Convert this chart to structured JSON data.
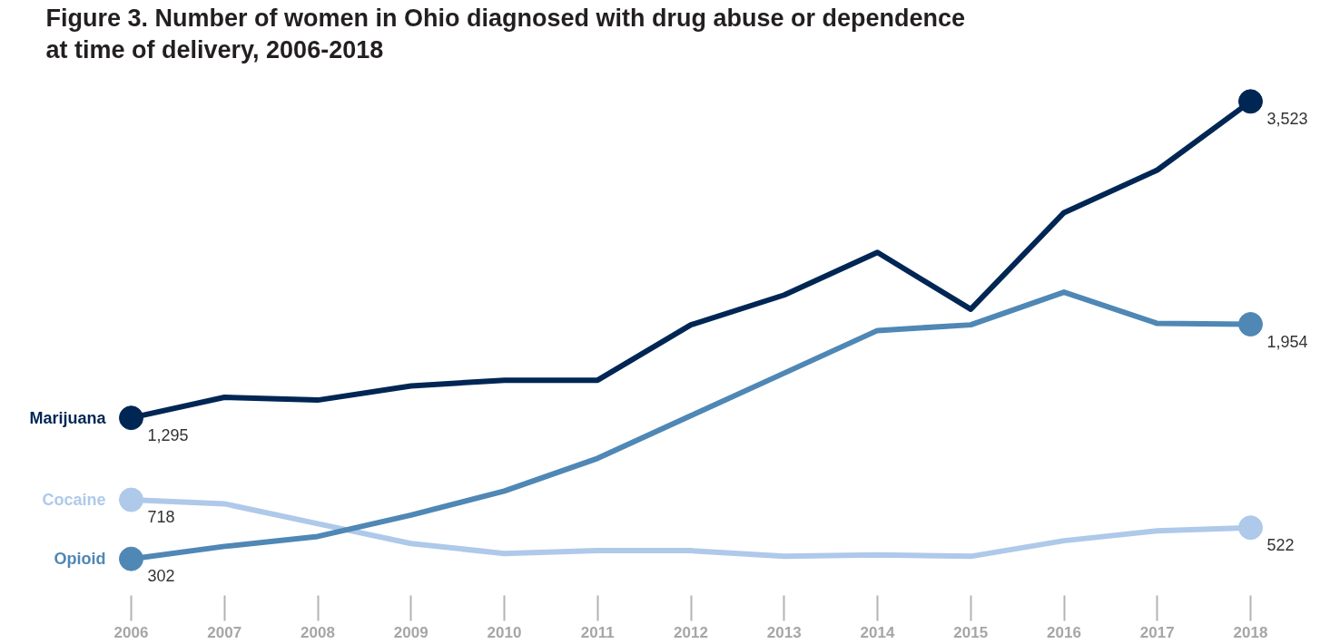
{
  "chart_data": {
    "type": "line",
    "title": "Figure 3. Number of women in Ohio diagnosed with drug abuse or dependence at time of delivery, 2006-2018",
    "x": [
      2006,
      2007,
      2008,
      2009,
      2010,
      2011,
      2012,
      2013,
      2014,
      2015,
      2016,
      2017,
      2018
    ],
    "xlim": [
      2006,
      2018
    ],
    "xticks": [
      2006,
      2007,
      2008,
      2009,
      2010,
      2011,
      2012,
      2013,
      2014,
      2015,
      2016,
      2017,
      2018
    ],
    "tick_labels": "x",
    "grid": false,
    "series": [
      {
        "name": "Marijuana",
        "color": "#002654",
        "values": [
          1295,
          1440,
          1420,
          1520,
          1560,
          1560,
          1950,
          2160,
          2460,
          2060,
          2740,
          3040,
          3523
        ]
      },
      {
        "name": "Cocaine",
        "color": "#aec9e9",
        "values": [
          718,
          690,
          550,
          410,
          340,
          360,
          360,
          320,
          330,
          320,
          430,
          500,
          522
        ]
      },
      {
        "name": "Opioid",
        "color": "#4f87b5",
        "values": [
          302,
          390,
          460,
          610,
          780,
          1010,
          1310,
          1610,
          1910,
          1950,
          2180,
          1960,
          1954
        ]
      },
      {
        "type": "scatter",
        "marker": "circle",
        "color": "#002654",
        "values": [
          1295,
          null,
          null,
          null,
          null,
          null,
          null,
          null,
          null,
          null,
          null,
          null,
          3523
        ],
        "value_labels": [
          "1,295",
          null,
          null,
          null,
          null,
          null,
          null,
          null,
          null,
          null,
          null,
          null,
          "3,523"
        ]
      },
      {
        "type": "scatter",
        "marker": "circle",
        "color": "#aec9e9",
        "values": [
          718,
          null,
          null,
          null,
          null,
          null,
          null,
          null,
          null,
          null,
          null,
          null,
          522
        ],
        "value_labels": [
          "718",
          null,
          null,
          null,
          null,
          null,
          null,
          null,
          null,
          null,
          null,
          null,
          "522"
        ]
      },
      {
        "type": "scatter",
        "marker": "circle",
        "color": "#4f87b5",
        "values": [
          302,
          null,
          null,
          null,
          null,
          null,
          null,
          null,
          null,
          null,
          null,
          null,
          1954
        ],
        "value_labels": [
          "302",
          null,
          null,
          null,
          null,
          null,
          null,
          null,
          null,
          null,
          null,
          null,
          "1,954"
        ]
      }
    ]
  }
}
